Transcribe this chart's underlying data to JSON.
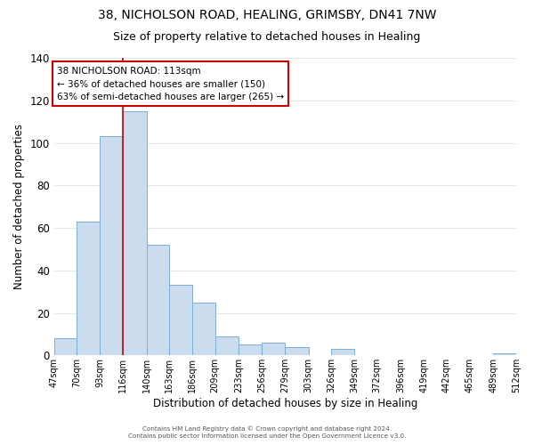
{
  "title": "38, NICHOLSON ROAD, HEALING, GRIMSBY, DN41 7NW",
  "subtitle": "Size of property relative to detached houses in Healing",
  "xlabel": "Distribution of detached houses by size in Healing",
  "ylabel": "Number of detached properties",
  "bin_edges": [
    47,
    70,
    93,
    116,
    140,
    163,
    186,
    209,
    233,
    256,
    279,
    303,
    326,
    349,
    372,
    396,
    419,
    442,
    465,
    489,
    512
  ],
  "bin_labels": [
    "47sqm",
    "70sqm",
    "93sqm",
    "116sqm",
    "140sqm",
    "163sqm",
    "186sqm",
    "209sqm",
    "233sqm",
    "256sqm",
    "279sqm",
    "303sqm",
    "326sqm",
    "349sqm",
    "372sqm",
    "396sqm",
    "419sqm",
    "442sqm",
    "465sqm",
    "489sqm",
    "512sqm"
  ],
  "counts": [
    8,
    63,
    103,
    115,
    52,
    33,
    25,
    9,
    5,
    6,
    4,
    0,
    3,
    0,
    0,
    0,
    0,
    0,
    0,
    1
  ],
  "bar_facecolor": "#ccdcef",
  "bar_edgecolor": "#7bafd4",
  "vline_x": 116,
  "vline_color": "#cc0000",
  "annotation_title": "38 NICHOLSON ROAD: 113sqm",
  "annotation_line1": "← 36% of detached houses are smaller (150)",
  "annotation_line2": "63% of semi-detached houses are larger (265) →",
  "annotation_box_edgecolor": "#cc0000",
  "annotation_box_facecolor": "#ffffff",
  "ylim": [
    0,
    140
  ],
  "yticks": [
    0,
    20,
    40,
    60,
    80,
    100,
    120,
    140
  ],
  "footnote1": "Contains HM Land Registry data © Crown copyright and database right 2024.",
  "footnote2": "Contains public sector information licensed under the Open Government Licence v3.0.",
  "bg_color": "#ffffff",
  "plot_bg_color": "#ffffff",
  "grid_color": "#e0e8f0",
  "title_fontsize": 10,
  "subtitle_fontsize": 9,
  "annotation_fontsize": 7.5
}
